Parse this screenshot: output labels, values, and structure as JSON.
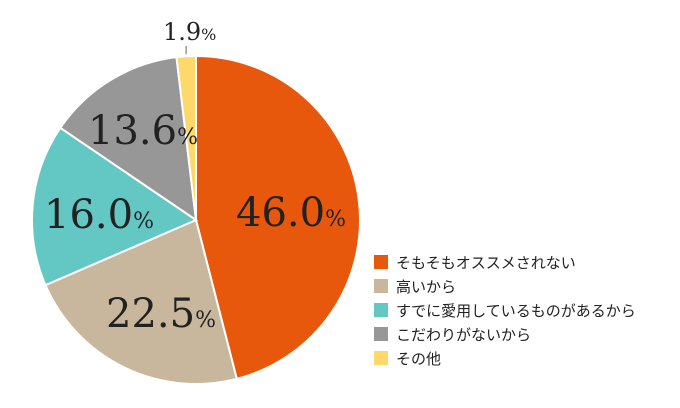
{
  "chart_data": {
    "type": "pie",
    "start_angle_deg": 0,
    "direction": "clockwise",
    "slices": [
      {
        "label": "そもそもオススメされない",
        "value": 46.0,
        "display_value": "46.0",
        "color": "#E8580C"
      },
      {
        "label": "高いから",
        "value": 22.5,
        "display_value": "22.5",
        "color": "#C8B79C"
      },
      {
        "label": "すでに愛用しているものがあるから",
        "value": 16.0,
        "display_value": "16.0",
        "color": "#63C8C4"
      },
      {
        "label": "こだわりがないから",
        "value": 13.6,
        "display_value": "13.6",
        "color": "#979797"
      },
      {
        "label": "その他",
        "value": 1.9,
        "display_value": "1.9",
        "color": "#FDD96A"
      }
    ],
    "unit": "%",
    "legend_placement": "right"
  }
}
